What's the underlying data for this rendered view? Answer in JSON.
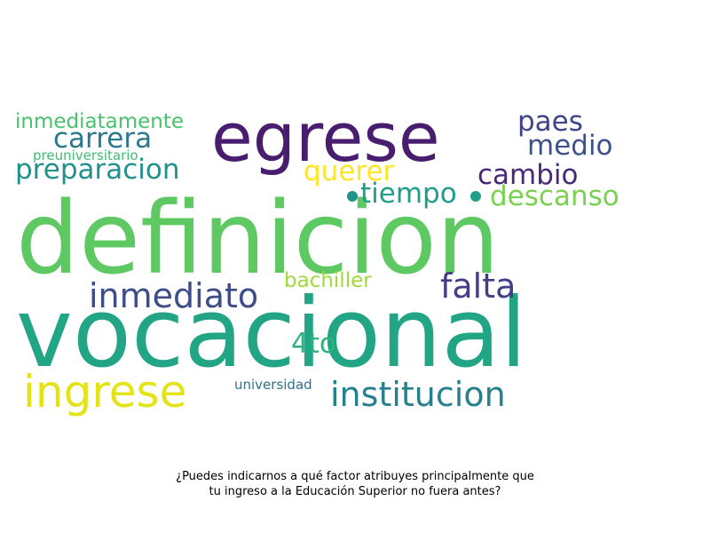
{
  "chart_data": {
    "type": "wordcloud",
    "words": [
      {
        "text": "definicion",
        "weight": 100,
        "color": "#5ec962"
      },
      {
        "text": "vocacional",
        "weight": 96,
        "color": "#21a585"
      },
      {
        "text": "egrese",
        "weight": 62,
        "color": "#481c6e"
      },
      {
        "text": "ingrese",
        "weight": 40,
        "color": "#e2e418"
      },
      {
        "text": "institucion",
        "weight": 30,
        "color": "#26818e"
      },
      {
        "text": "inmediato",
        "weight": 28,
        "color": "#3d4d8a"
      },
      {
        "text": "falta",
        "weight": 28,
        "color": "#433e85"
      },
      {
        "text": "preparacion",
        "weight": 24,
        "color": "#21918c"
      },
      {
        "text": "carrera",
        "weight": 24,
        "color": "#2a788e"
      },
      {
        "text": "paes",
        "weight": 24,
        "color": "#414487"
      },
      {
        "text": "medio",
        "weight": 24,
        "color": "#3b528b"
      },
      {
        "text": "cambio",
        "weight": 24,
        "color": "#482878"
      },
      {
        "text": "querer",
        "weight": 24,
        "color": "#fde725"
      },
      {
        "text": "tiempo",
        "weight": 24,
        "color": "#1f9e89"
      },
      {
        "text": "descanso",
        "weight": 24,
        "color": "#7ad151"
      },
      {
        "text": "4to",
        "weight": 24,
        "color": "#2db27d"
      },
      {
        "text": "inmediatamente",
        "weight": 19,
        "color": "#4ac16d"
      },
      {
        "text": "bachiller",
        "weight": 19,
        "color": "#a0da39"
      },
      {
        "text": "universidad",
        "weight": 12,
        "color": "#2c728e"
      },
      {
        "text": "preuniversitario",
        "weight": 12,
        "color": "#3fbc73"
      }
    ],
    "background": "#ffffff"
  },
  "caption": {
    "line1": "¿Puedes indicarnos a qué factor atribuyes principalmente que",
    "line2": "tu ingreso a la Educación Superior no fuera antes?"
  },
  "decorations": {
    "dot_color_1": "#21918c",
    "dot_color_2": "#1f9e89"
  }
}
